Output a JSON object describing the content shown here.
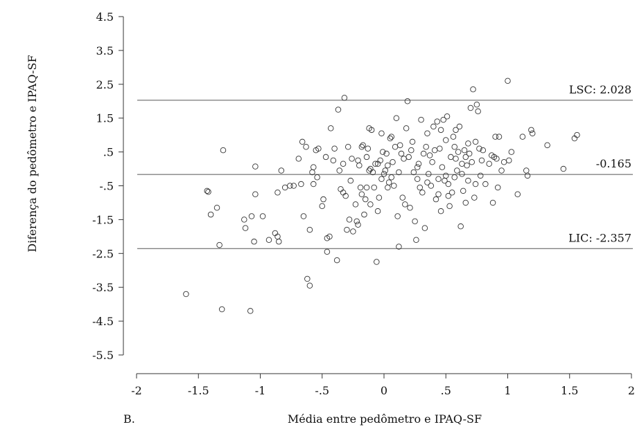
{
  "chart_data": {
    "type": "scatter",
    "panel_label": "B.",
    "xlabel": "Média entre pedômetro e IPAQ-SF",
    "ylabel": "Diferença do pedômetro e IPAQ-SF",
    "xlim": [
      -2,
      2
    ],
    "ylim": [
      -5.5,
      4.5
    ],
    "x_ticks": [
      -2,
      -1.5,
      -1,
      -0.5,
      0,
      0.5,
      1,
      1.5,
      2
    ],
    "x_tick_labels": [
      "-2",
      "-1.5",
      "-1",
      "-.5",
      "0",
      ".5",
      "1",
      "1.5",
      "2"
    ],
    "y_ticks": [
      4.5,
      3.5,
      2.5,
      1.5,
      0.5,
      -0.5,
      -1.5,
      -2.5,
      -3.5,
      -4.5,
      -5.5
    ],
    "y_tick_labels": [
      "4.5",
      "3.5",
      "2.5",
      "1.5",
      ".5",
      "-.5",
      "-1.5",
      "-2.5",
      "-3.5",
      "-4.5",
      "-5.5"
    ],
    "reference_lines": [
      {
        "y": 2.028,
        "label": "LSC: 2.028"
      },
      {
        "y": -0.165,
        "label": "-0.165"
      },
      {
        "y": -2.357,
        "label": "LIC: -2.357"
      }
    ],
    "grid": false,
    "series": [
      {
        "marker": "open-circle",
        "color": "#333333",
        "points": [
          [
            -1.6,
            -3.7
          ],
          [
            -1.43,
            -0.65
          ],
          [
            -1.42,
            -0.68
          ],
          [
            -1.4,
            -1.35
          ],
          [
            -1.35,
            -1.15
          ],
          [
            -1.33,
            -2.25
          ],
          [
            -1.31,
            -4.15
          ],
          [
            -1.3,
            0.55
          ],
          [
            -1.13,
            -1.5
          ],
          [
            -1.12,
            -1.75
          ],
          [
            -1.07,
            -1.4
          ],
          [
            -1.05,
            -2.15
          ],
          [
            -1.04,
            -0.75
          ],
          [
            -1.04,
            0.07
          ],
          [
            -1.08,
            -4.2
          ],
          [
            -0.98,
            -1.4
          ],
          [
            -0.93,
            -2.1
          ],
          [
            -0.88,
            -1.9
          ],
          [
            -0.86,
            -2.0
          ],
          [
            -0.85,
            -2.15
          ],
          [
            -0.83,
            -0.05
          ],
          [
            -0.86,
            -0.7
          ],
          [
            -0.8,
            -0.55
          ],
          [
            -0.76,
            -0.5
          ],
          [
            -0.73,
            -0.5
          ],
          [
            -0.67,
            -0.45
          ],
          [
            -0.65,
            -1.4
          ],
          [
            -0.66,
            0.8
          ],
          [
            -0.63,
            0.65
          ],
          [
            -0.62,
            -3.25
          ],
          [
            -0.6,
            -1.8
          ],
          [
            -0.6,
            -3.45
          ],
          [
            -0.58,
            -0.1
          ],
          [
            -0.55,
            0.55
          ],
          [
            -0.53,
            0.6
          ],
          [
            -0.57,
            0.05
          ],
          [
            -0.57,
            -0.45
          ],
          [
            -0.49,
            -0.9
          ],
          [
            -0.5,
            -1.1
          ],
          [
            -0.47,
            0.35
          ],
          [
            -0.46,
            -2.05
          ],
          [
            -0.46,
            -2.45
          ],
          [
            -0.44,
            -2.0
          ],
          [
            -0.43,
            1.2
          ],
          [
            -0.4,
            0.6
          ],
          [
            -0.38,
            -2.7
          ],
          [
            -0.37,
            1.75
          ],
          [
            -0.35,
            -0.6
          ],
          [
            -0.33,
            -0.7
          ],
          [
            -0.33,
            0.15
          ],
          [
            -0.32,
            2.1
          ],
          [
            -0.31,
            -0.8
          ],
          [
            -0.3,
            -1.8
          ],
          [
            -0.29,
            0.65
          ],
          [
            -0.28,
            -1.5
          ],
          [
            -0.25,
            -1.85
          ],
          [
            -0.23,
            -1.05
          ],
          [
            -0.22,
            -1.55
          ],
          [
            -0.21,
            -1.65
          ],
          [
            -0.21,
            0.25
          ],
          [
            -0.19,
            -0.55
          ],
          [
            -0.18,
            0.65
          ],
          [
            -0.17,
            0.7
          ],
          [
            -0.16,
            -1.35
          ],
          [
            -0.15,
            -0.9
          ],
          [
            -0.14,
            -0.55
          ],
          [
            -0.14,
            0.35
          ],
          [
            -0.12,
            1.2
          ],
          [
            -0.12,
            -0.05
          ],
          [
            -0.11,
            -1.05
          ],
          [
            -0.1,
            1.15
          ],
          [
            -0.09,
            -0.1
          ],
          [
            -0.08,
            -0.55
          ],
          [
            -0.07,
            0.15
          ],
          [
            -0.06,
            -2.75
          ],
          [
            -0.05,
            -1.25
          ],
          [
            -0.05,
            0.15
          ],
          [
            -0.04,
            -0.85
          ],
          [
            -0.03,
            0.25
          ],
          [
            -0.02,
            -0.3
          ],
          [
            -0.01,
            0.5
          ],
          [
            0.0,
            -0.15
          ],
          [
            0.01,
            -0.05
          ],
          [
            0.02,
            0.45
          ],
          [
            0.03,
            0.1
          ],
          [
            0.04,
            -0.4
          ],
          [
            0.05,
            0.9
          ],
          [
            0.06,
            -0.25
          ],
          [
            0.07,
            0.2
          ],
          [
            0.08,
            -0.5
          ],
          [
            0.1,
            1.5
          ],
          [
            0.11,
            -1.4
          ],
          [
            0.12,
            -0.1
          ],
          [
            0.12,
            -2.3
          ],
          [
            0.14,
            0.45
          ],
          [
            0.15,
            -0.85
          ],
          [
            0.17,
            -1.05
          ],
          [
            0.19,
            2.0
          ],
          [
            0.2,
            0.35
          ],
          [
            0.21,
            -1.15
          ],
          [
            0.22,
            0.55
          ],
          [
            0.24,
            -0.1
          ],
          [
            0.25,
            -1.55
          ],
          [
            0.26,
            -2.1
          ],
          [
            0.27,
            -0.3
          ],
          [
            0.28,
            0.15
          ],
          [
            0.3,
            1.45
          ],
          [
            0.31,
            -0.7
          ],
          [
            0.32,
            0.45
          ],
          [
            0.33,
            -1.75
          ],
          [
            0.34,
            0.65
          ],
          [
            0.35,
            1.05
          ],
          [
            0.36,
            -0.15
          ],
          [
            0.37,
            0.4
          ],
          [
            0.38,
            -0.5
          ],
          [
            0.4,
            1.25
          ],
          [
            0.41,
            0.55
          ],
          [
            0.42,
            -0.9
          ],
          [
            0.43,
            1.4
          ],
          [
            0.44,
            -0.3
          ],
          [
            0.45,
            0.6
          ],
          [
            0.46,
            -1.25
          ],
          [
            0.47,
            0.05
          ],
          [
            0.48,
            1.45
          ],
          [
            0.49,
            -0.35
          ],
          [
            0.5,
            0.85
          ],
          [
            0.51,
            1.55
          ],
          [
            0.52,
            -0.45
          ],
          [
            0.53,
            -1.1
          ],
          [
            0.54,
            0.35
          ],
          [
            0.55,
            -0.7
          ],
          [
            0.56,
            0.95
          ],
          [
            0.57,
            -0.25
          ],
          [
            0.58,
            1.15
          ],
          [
            0.59,
            -0.05
          ],
          [
            0.6,
            0.5
          ],
          [
            0.61,
            1.25
          ],
          [
            0.62,
            -1.7
          ],
          [
            0.63,
            0.15
          ],
          [
            0.64,
            -0.65
          ],
          [
            0.65,
            0.55
          ],
          [
            0.66,
            -1.0
          ],
          [
            0.67,
            0.1
          ],
          [
            0.68,
            -0.35
          ],
          [
            0.69,
            0.45
          ],
          [
            0.7,
            1.8
          ],
          [
            0.71,
            0.2
          ],
          [
            0.72,
            2.35
          ],
          [
            0.73,
            -0.85
          ],
          [
            0.74,
            0.8
          ],
          [
            0.75,
            1.9
          ],
          [
            0.76,
            1.7
          ],
          [
            0.77,
            0.6
          ],
          [
            0.78,
            -0.2
          ],
          [
            0.79,
            0.25
          ],
          [
            0.8,
            0.55
          ],
          [
            0.82,
            -0.45
          ],
          [
            0.85,
            0.15
          ],
          [
            0.87,
            0.4
          ],
          [
            0.88,
            -1.0
          ],
          [
            0.89,
            0.35
          ],
          [
            0.9,
            0.95
          ],
          [
            0.91,
            0.3
          ],
          [
            0.92,
            -0.55
          ],
          [
            0.93,
            0.95
          ],
          [
            0.95,
            -0.05
          ],
          [
            0.97,
            0.2
          ],
          [
            1.0,
            2.6
          ],
          [
            1.01,
            0.25
          ],
          [
            1.03,
            0.5
          ],
          [
            1.08,
            -0.75
          ],
          [
            1.12,
            0.95
          ],
          [
            1.15,
            -0.05
          ],
          [
            1.16,
            -0.2
          ],
          [
            1.19,
            1.15
          ],
          [
            1.2,
            1.05
          ],
          [
            1.32,
            0.7
          ],
          [
            1.45,
            0.0
          ],
          [
            1.54,
            0.9
          ],
          [
            1.56,
            1.0
          ],
          [
            -0.26,
            0.3
          ],
          [
            -0.2,
            0.1
          ],
          [
            -0.13,
            0.6
          ],
          [
            -0.02,
            1.05
          ],
          [
            0.06,
            0.95
          ],
          [
            0.09,
            0.65
          ],
          [
            0.16,
            0.3
          ],
          [
            0.23,
            0.8
          ],
          [
            0.29,
            -0.55
          ],
          [
            0.39,
            0.2
          ],
          [
            0.44,
            -0.75
          ],
          [
            0.52,
            -0.8
          ],
          [
            0.57,
            0.65
          ],
          [
            0.63,
            -0.15
          ],
          [
            0.68,
            0.75
          ],
          [
            0.74,
            -0.45
          ],
          [
            -0.69,
            0.3
          ],
          [
            -0.54,
            -0.25
          ],
          [
            -0.41,
            0.25
          ],
          [
            -0.36,
            -0.05
          ],
          [
            -0.27,
            -0.35
          ],
          [
            -0.18,
            -0.75
          ],
          [
            -0.11,
            0.0
          ],
          [
            0.03,
            -0.55
          ],
          [
            0.13,
            0.7
          ],
          [
            0.18,
            1.2
          ],
          [
            0.27,
            0.05
          ],
          [
            0.35,
            -0.4
          ],
          [
            0.46,
            1.15
          ],
          [
            0.5,
            -0.2
          ],
          [
            0.58,
            0.3
          ],
          [
            0.66,
            0.35
          ]
        ]
      }
    ]
  }
}
